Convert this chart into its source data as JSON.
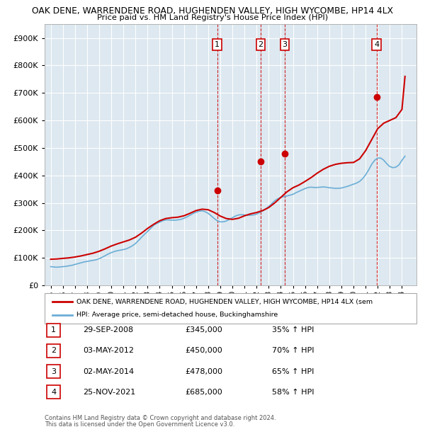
{
  "title1": "OAK DENE, WARRENDENE ROAD, HUGHENDEN VALLEY, HIGH WYCOMBE, HP14 4LX",
  "title2": "Price paid vs. HM Land Registry's House Price Index (HPI)",
  "legend_line1": "OAK DENE, WARRENDENE ROAD, HUGHENDEN VALLEY, HIGH WYCOMBE, HP14 4LX (sem",
  "legend_line2": "HPI: Average price, semi-detached house, Buckinghamshire",
  "footer1": "Contains HM Land Registry data © Crown copyright and database right 2024.",
  "footer2": "This data is licensed under the Open Government Licence v3.0.",
  "sales": [
    {
      "num": 1,
      "date": "29-SEP-2008",
      "price": 345000,
      "pct": "35%",
      "x": 2008.75
    },
    {
      "num": 2,
      "date": "03-MAY-2012",
      "price": 450000,
      "pct": "70%",
      "x": 2012.33
    },
    {
      "num": 3,
      "date": "02-MAY-2014",
      "price": 478000,
      "pct": "65%",
      "x": 2014.33
    },
    {
      "num": 4,
      "date": "25-NOV-2021",
      "price": 685000,
      "pct": "58%",
      "x": 2021.9
    }
  ],
  "hpi_color": "#6baed6",
  "price_color": "#cc0000",
  "background_color": "#dde8f0",
  "ylim": [
    0,
    950000
  ],
  "yticks": [
    0,
    100000,
    200000,
    300000,
    400000,
    500000,
    600000,
    700000,
    800000,
    900000
  ],
  "xlim": [
    1994.5,
    2025.2
  ],
  "xticks": [
    1995,
    1996,
    1997,
    1998,
    1999,
    2000,
    2001,
    2002,
    2003,
    2004,
    2005,
    2006,
    2007,
    2008,
    2009,
    2010,
    2011,
    2012,
    2013,
    2014,
    2015,
    2016,
    2017,
    2018,
    2019,
    2020,
    2021,
    2022,
    2023,
    2024
  ],
  "hpi_data_x": [
    1995,
    1995.25,
    1995.5,
    1995.75,
    1996,
    1996.25,
    1996.5,
    1996.75,
    1997,
    1997.25,
    1997.5,
    1997.75,
    1998,
    1998.25,
    1998.5,
    1998.75,
    1999,
    1999.25,
    1999.5,
    1999.75,
    2000,
    2000.25,
    2000.5,
    2000.75,
    2001,
    2001.25,
    2001.5,
    2001.75,
    2002,
    2002.25,
    2002.5,
    2002.75,
    2003,
    2003.25,
    2003.5,
    2003.75,
    2004,
    2004.25,
    2004.5,
    2004.75,
    2005,
    2005.25,
    2005.5,
    2005.75,
    2006,
    2006.25,
    2006.5,
    2006.75,
    2007,
    2007.25,
    2007.5,
    2007.75,
    2008,
    2008.25,
    2008.5,
    2008.75,
    2009,
    2009.25,
    2009.5,
    2009.75,
    2010,
    2010.25,
    2010.5,
    2010.75,
    2011,
    2011.25,
    2011.5,
    2011.75,
    2012,
    2012.25,
    2012.5,
    2012.75,
    2013,
    2013.25,
    2013.5,
    2013.75,
    2014,
    2014.25,
    2014.5,
    2014.75,
    2015,
    2015.25,
    2015.5,
    2015.75,
    2016,
    2016.25,
    2016.5,
    2016.75,
    2017,
    2017.25,
    2017.5,
    2017.75,
    2018,
    2018.25,
    2018.5,
    2018.75,
    2019,
    2019.25,
    2019.5,
    2019.75,
    2020,
    2020.25,
    2020.5,
    2020.75,
    2021,
    2021.25,
    2021.5,
    2021.75,
    2022,
    2022.25,
    2022.5,
    2022.75,
    2023,
    2023.25,
    2023.5,
    2023.75,
    2024,
    2024.25
  ],
  "hpi_data_y": [
    68000,
    67000,
    66000,
    67000,
    68000,
    69000,
    71000,
    73000,
    76000,
    79000,
    82000,
    85000,
    87000,
    89000,
    91000,
    93000,
    97000,
    102000,
    108000,
    114000,
    119000,
    123000,
    126000,
    128000,
    130000,
    133000,
    138000,
    144000,
    152000,
    163000,
    175000,
    186000,
    196000,
    207000,
    218000,
    225000,
    230000,
    235000,
    238000,
    238000,
    237000,
    237000,
    238000,
    240000,
    244000,
    249000,
    255000,
    261000,
    266000,
    270000,
    271000,
    268000,
    262000,
    253000,
    243000,
    235000,
    231000,
    231000,
    234000,
    240000,
    246000,
    252000,
    256000,
    257000,
    256000,
    255000,
    255000,
    256000,
    259000,
    265000,
    271000,
    278000,
    287000,
    297000,
    308000,
    315000,
    320000,
    323000,
    325000,
    328000,
    331000,
    337000,
    342000,
    347000,
    352000,
    356000,
    357000,
    356000,
    356000,
    357000,
    358000,
    357000,
    355000,
    354000,
    353000,
    353000,
    354000,
    357000,
    360000,
    364000,
    368000,
    372000,
    378000,
    388000,
    402000,
    420000,
    440000,
    455000,
    463000,
    463000,
    455000,
    442000,
    432000,
    428000,
    430000,
    438000,
    455000,
    470000
  ],
  "price_data_x": [
    1995,
    1995.5,
    1996,
    1996.5,
    1997,
    1997.5,
    1998,
    1998.5,
    1999,
    1999.5,
    2000,
    2000.5,
    2001,
    2001.5,
    2002,
    2002.5,
    2003,
    2003.5,
    2004,
    2004.5,
    2005,
    2005.5,
    2006,
    2006.5,
    2007,
    2007.5,
    2008,
    2008.5,
    2009,
    2009.5,
    2010,
    2010.5,
    2011,
    2011.5,
    2012,
    2012.5,
    2013,
    2013.5,
    2014,
    2014.5,
    2015,
    2015.5,
    2016,
    2016.5,
    2017,
    2017.5,
    2018,
    2018.5,
    2019,
    2019.5,
    2020,
    2020.5,
    2021,
    2021.5,
    2022,
    2022.5,
    2023,
    2023.5,
    2024,
    2024.25
  ],
  "price_data_y": [
    95000,
    96000,
    98000,
    100000,
    103000,
    107000,
    112000,
    117000,
    124000,
    133000,
    143000,
    151000,
    158000,
    165000,
    175000,
    190000,
    207000,
    222000,
    235000,
    243000,
    246000,
    248000,
    253000,
    262000,
    272000,
    277000,
    275000,
    265000,
    252000,
    243000,
    240000,
    244000,
    253000,
    260000,
    265000,
    272000,
    283000,
    300000,
    320000,
    340000,
    355000,
    365000,
    378000,
    392000,
    408000,
    422000,
    433000,
    440000,
    444000,
    446000,
    447000,
    460000,
    490000,
    530000,
    570000,
    590000,
    600000,
    610000,
    640000,
    760000
  ]
}
